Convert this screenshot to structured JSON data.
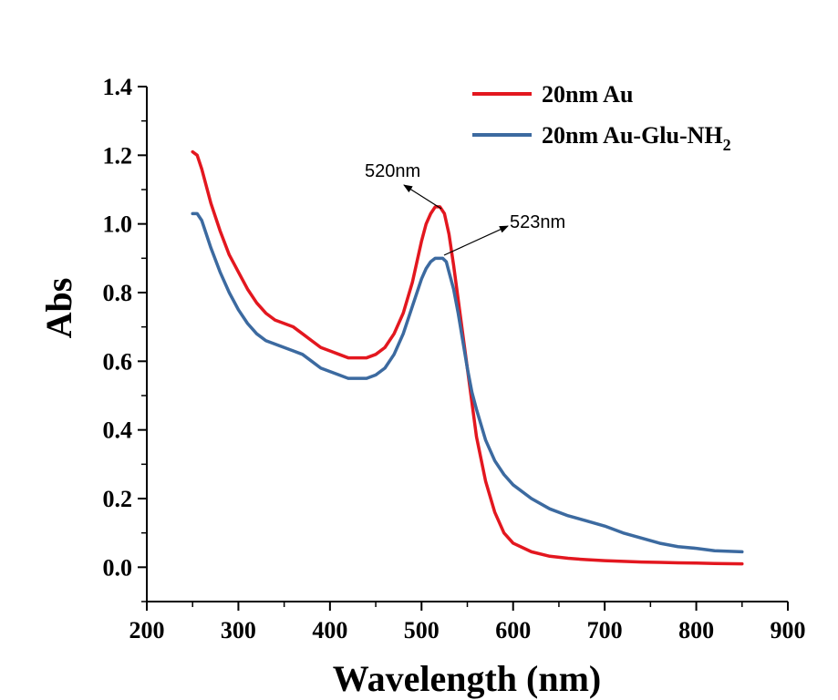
{
  "chart_data": {
    "type": "line",
    "title": "",
    "xlabel": "Wavelength (nm)",
    "ylabel": "Abs",
    "xlim": [
      200,
      900
    ],
    "ylim": [
      -0.1,
      1.4
    ],
    "x_ticks": [
      200,
      300,
      400,
      500,
      600,
      700,
      800,
      900
    ],
    "y_ticks": [
      0.0,
      0.2,
      0.4,
      0.6,
      0.8,
      1.0,
      1.2,
      1.4
    ],
    "x_tick_labels": [
      "200",
      "300",
      "400",
      "500",
      "600",
      "700",
      "800",
      "900"
    ],
    "y_tick_labels": [
      "0.0",
      "0.2",
      "0.4",
      "0.6",
      "0.8",
      "1.0",
      "1.2",
      "1.4"
    ],
    "grid": false,
    "legend_position": "top-right",
    "series": [
      {
        "name": "20nm Au",
        "color": "#e3171f",
        "x": [
          250,
          255,
          260,
          270,
          280,
          290,
          300,
          310,
          320,
          330,
          340,
          350,
          360,
          370,
          380,
          390,
          400,
          410,
          420,
          430,
          440,
          450,
          460,
          470,
          480,
          490,
          500,
          505,
          510,
          515,
          520,
          525,
          530,
          535,
          540,
          545,
          550,
          555,
          560,
          570,
          580,
          590,
          600,
          620,
          640,
          660,
          680,
          700,
          720,
          740,
          760,
          780,
          800,
          820,
          850
        ],
        "y": [
          1.21,
          1.2,
          1.16,
          1.06,
          0.98,
          0.91,
          0.86,
          0.81,
          0.77,
          0.74,
          0.72,
          0.71,
          0.7,
          0.68,
          0.66,
          0.64,
          0.63,
          0.62,
          0.61,
          0.61,
          0.61,
          0.62,
          0.64,
          0.68,
          0.74,
          0.83,
          0.95,
          1.0,
          1.03,
          1.05,
          1.05,
          1.03,
          0.97,
          0.88,
          0.78,
          0.68,
          0.58,
          0.48,
          0.38,
          0.25,
          0.16,
          0.1,
          0.07,
          0.045,
          0.032,
          0.026,
          0.022,
          0.019,
          0.017,
          0.015,
          0.014,
          0.013,
          0.012,
          0.011,
          0.01
        ]
      },
      {
        "name": "20nm Au-Glu-NH2",
        "color": "#3c6aa0",
        "x": [
          250,
          255,
          260,
          270,
          280,
          290,
          300,
          310,
          320,
          330,
          340,
          350,
          360,
          370,
          380,
          390,
          400,
          410,
          420,
          430,
          440,
          450,
          460,
          470,
          480,
          490,
          500,
          505,
          510,
          515,
          520,
          523,
          527,
          530,
          535,
          540,
          545,
          550,
          555,
          560,
          570,
          580,
          590,
          600,
          620,
          640,
          660,
          680,
          700,
          720,
          740,
          760,
          780,
          800,
          820,
          850
        ],
        "y": [
          1.03,
          1.03,
          1.01,
          0.93,
          0.86,
          0.8,
          0.75,
          0.71,
          0.68,
          0.66,
          0.65,
          0.64,
          0.63,
          0.62,
          0.6,
          0.58,
          0.57,
          0.56,
          0.55,
          0.55,
          0.55,
          0.56,
          0.58,
          0.62,
          0.68,
          0.76,
          0.84,
          0.87,
          0.89,
          0.9,
          0.9,
          0.9,
          0.89,
          0.86,
          0.81,
          0.74,
          0.66,
          0.58,
          0.51,
          0.46,
          0.37,
          0.31,
          0.27,
          0.24,
          0.2,
          0.17,
          0.15,
          0.135,
          0.12,
          0.1,
          0.085,
          0.07,
          0.06,
          0.055,
          0.048,
          0.045
        ]
      }
    ],
    "legend": [
      {
        "name": "20nm Au",
        "color": "#e3171f",
        "text": "20nm Au",
        "subscript": ""
      },
      {
        "name": "20nm Au-Glu-NH2",
        "color": "#3c6aa0",
        "text": "20nm Au-Glu-NH",
        "subscript": "2"
      }
    ],
    "annotations": [
      {
        "text": "520nm",
        "x": 520,
        "y": 1.05
      },
      {
        "text": "523nm",
        "x": 523,
        "y": 0.9
      }
    ]
  }
}
